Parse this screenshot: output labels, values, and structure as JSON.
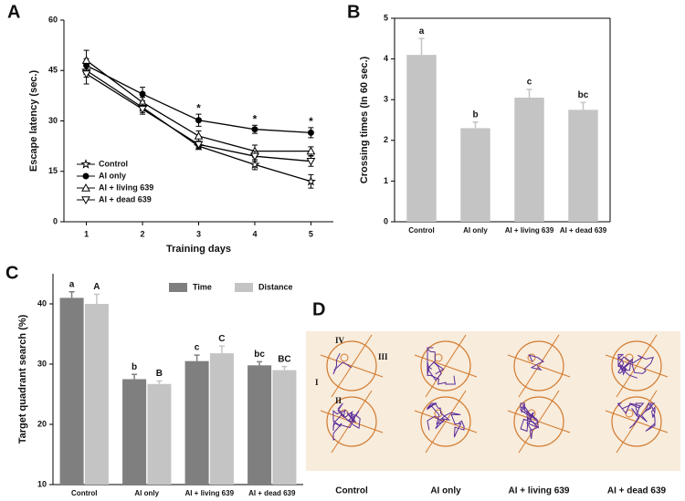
{
  "chart_data": [
    {
      "type": "line",
      "label": "A",
      "xlabel": "Training days",
      "ylabel": "Escape latency (sec.)",
      "x": [
        1,
        2,
        3,
        4,
        5
      ],
      "xlim": [
        0.6,
        5.4
      ],
      "xticks": [
        1,
        2,
        3,
        4,
        5
      ],
      "ylim": [
        0,
        60
      ],
      "yticks": [
        0,
        15,
        30,
        45,
        60
      ],
      "series": [
        {
          "name": "Control",
          "color": "#000000",
          "marker": "star",
          "values": [
            45,
            34,
            22.5,
            17,
            12
          ],
          "errors": [
            2,
            1.5,
            1,
            1.5,
            2
          ]
        },
        {
          "name": "AI only",
          "color": "#000000",
          "marker": "circle",
          "values": [
            46.5,
            38,
            30.2,
            27.5,
            26.5
          ],
          "errors": [
            2,
            2,
            1.8,
            1.2,
            1.5
          ],
          "annotations": [
            null,
            null,
            "*",
            "*",
            "*"
          ]
        },
        {
          "name": "AI + living 639",
          "color": "#000000",
          "marker": "triangle-up",
          "values": [
            48,
            35.5,
            25.5,
            21,
            21
          ],
          "errors": [
            3,
            1.5,
            1.5,
            1.8,
            1.3
          ]
        },
        {
          "name": "AI + dead 639",
          "color": "#000000",
          "marker": "triangle-down",
          "values": [
            44,
            33.5,
            23,
            19.5,
            18
          ],
          "errors": [
            3,
            1.5,
            1,
            1.5,
            1.5
          ]
        }
      ]
    },
    {
      "type": "bar",
      "label": "B",
      "ylabel": "Crossing times (In 60 sec.)",
      "categories": [
        "Control",
        "AI only",
        "AI + living 639",
        "AI + dead 639"
      ],
      "ylim": [
        0,
        5
      ],
      "yticks": [
        0,
        1,
        2,
        3,
        4,
        5
      ],
      "series": [
        {
          "color": "#c4c4c4",
          "values": [
            4.1,
            2.3,
            3.05,
            2.75
          ],
          "errors": [
            0.4,
            0.15,
            0.2,
            0.18
          ],
          "annotations": [
            "a",
            "b",
            "c",
            "bc"
          ]
        }
      ]
    },
    {
      "type": "bar",
      "label": "C",
      "ylabel": "Target quadrant search (%)",
      "categories": [
        "Control",
        "AI only",
        "AI + living 639",
        "AI + dead 639"
      ],
      "ylim": [
        10,
        45
      ],
      "yticks": [
        10,
        20,
        30,
        40
      ],
      "series": [
        {
          "name": "Time",
          "color": "#7f7f7f",
          "values": [
            41,
            27.5,
            30.5,
            29.8
          ],
          "errors": [
            1,
            0.8,
            1,
            0.6
          ],
          "annotations": [
            "a",
            "b",
            "c",
            "bc"
          ]
        },
        {
          "name": "Distance",
          "color": "#c4c4c4",
          "values": [
            40,
            26.7,
            31.8,
            29
          ],
          "errors": [
            1.6,
            0.5,
            1.2,
            0.6
          ],
          "annotations": [
            "A",
            "B",
            "C",
            "BC"
          ]
        }
      ]
    }
  ],
  "panel_d": {
    "label": "D",
    "quadrant_labels": [
      "IV",
      "III",
      "I",
      "II"
    ],
    "groups": [
      "Control",
      "AI only",
      "AI + living 639",
      "AI + dead 639"
    ]
  }
}
